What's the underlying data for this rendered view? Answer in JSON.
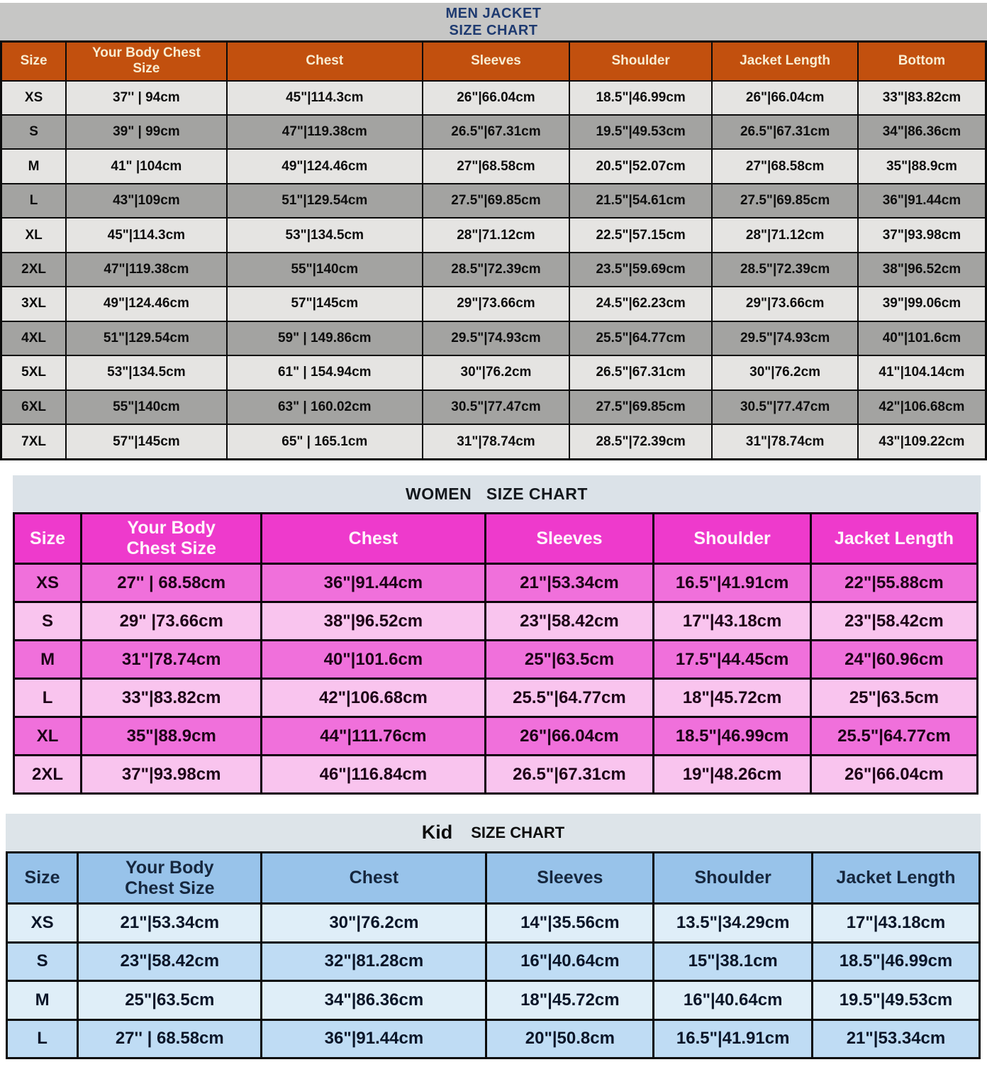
{
  "colors": {
    "men_header_bg": "#c2500e",
    "men_header_text": "#f8edd2",
    "men_title_text": "#1e3a70",
    "men_title_band_bg": "#c6c6c5",
    "men_row_light": "#e5e4e2",
    "men_row_dark": "#a3a3a1",
    "women_header_bg": "#ee3acc",
    "women_row_bright": "#f070db",
    "women_row_light": "#f9c4ee",
    "women_title_band_bg": "#dbe2e8",
    "kid_header_bg": "#98c3ea",
    "kid_row_pale": "#dfeef8",
    "kid_row_mid": "#bfdcf4",
    "kid_title_band_bg": "#dde4e9",
    "table_border": "#0b0b0b"
  },
  "men": {
    "title_line1": "MEN JACKET",
    "title_line2": "SIZE CHART",
    "columns": [
      "Size",
      "Your Body Chest\nSize",
      "Chest",
      "Sleeves",
      "Shoulder",
      "Jacket Length",
      "Bottom"
    ],
    "rows": [
      [
        "XS",
        "37'' | 94cm",
        "45\"|114.3cm",
        "26\"|66.04cm",
        "18.5\"|46.99cm",
        "26\"|66.04cm",
        "33\"|83.82cm"
      ],
      [
        "S",
        "39\" | 99cm",
        "47\"|119.38cm",
        "26.5\"|67.31cm",
        "19.5\"|49.53cm",
        "26.5\"|67.31cm",
        "34\"|86.36cm"
      ],
      [
        "M",
        "41\" |104cm",
        "49\"|124.46cm",
        "27\"|68.58cm",
        "20.5\"|52.07cm",
        "27\"|68.58cm",
        "35\"|88.9cm"
      ],
      [
        "L",
        "43\"|109cm",
        "51\"|129.54cm",
        "27.5\"|69.85cm",
        "21.5\"|54.61cm",
        "27.5\"|69.85cm",
        "36\"|91.44cm"
      ],
      [
        "XL",
        "45\"|114.3cm",
        "53\"|134.5cm",
        "28\"|71.12cm",
        "22.5\"|57.15cm",
        "28\"|71.12cm",
        "37\"|93.98cm"
      ],
      [
        "2XL",
        "47\"|119.38cm",
        "55\"|140cm",
        "28.5\"|72.39cm",
        "23.5\"|59.69cm",
        "28.5\"|72.39cm",
        "38\"|96.52cm"
      ],
      [
        "3XL",
        "49\"|124.46cm",
        "57\"|145cm",
        "29\"|73.66cm",
        "24.5\"|62.23cm",
        "29\"|73.66cm",
        "39\"|99.06cm"
      ],
      [
        "4XL",
        "51\"|129.54cm",
        "59\" | 149.86cm",
        "29.5\"|74.93cm",
        "25.5\"|64.77cm",
        "29.5\"|74.93cm",
        "40\"|101.6cm"
      ],
      [
        "5XL",
        "53\"|134.5cm",
        "61\" | 154.94cm",
        "30\"|76.2cm",
        "26.5\"|67.31cm",
        "30\"|76.2cm",
        "41\"|104.14cm"
      ],
      [
        "6XL",
        "55\"|140cm",
        "63\" | 160.02cm",
        "30.5\"|77.47cm",
        "27.5\"|69.85cm",
        "30.5\"|77.47cm",
        "42\"|106.68cm"
      ],
      [
        "7XL",
        "57\"|145cm",
        "65\" | 165.1cm",
        "31\"|78.74cm",
        "28.5\"|72.39cm",
        "31\"|78.74cm",
        "43\"|109.22cm"
      ]
    ]
  },
  "women": {
    "title": "WOMEN   SIZE CHART",
    "columns": [
      "Size",
      "Your Body\nChest Size",
      "Chest",
      "Sleeves",
      "Shoulder",
      "Jacket Length"
    ],
    "rows": [
      [
        "XS",
        "27'' | 68.58cm",
        "36\"|91.44cm",
        "21\"|53.34cm",
        "16.5\"|41.91cm",
        "22\"|55.88cm"
      ],
      [
        "S",
        "29\" |73.66cm",
        "38\"|96.52cm",
        "23\"|58.42cm",
        "17\"|43.18cm",
        "23\"|58.42cm"
      ],
      [
        "M",
        "31\"|78.74cm",
        "40\"|101.6cm",
        "25\"|63.5cm",
        "17.5\"|44.45cm",
        "24\"|60.96cm"
      ],
      [
        "L",
        "33\"|83.82cm",
        "42\"|106.68cm",
        "25.5\"|64.77cm",
        "18\"|45.72cm",
        "25\"|63.5cm"
      ],
      [
        "XL",
        "35\"|88.9cm",
        "44\"|111.76cm",
        "26\"|66.04cm",
        "18.5\"|46.99cm",
        "25.5\"|64.77cm"
      ],
      [
        "2XL",
        "37\"|93.98cm",
        "46\"|116.84cm",
        "26.5\"|67.31cm",
        "19\"|48.26cm",
        "26\"|66.04cm"
      ]
    ]
  },
  "kid": {
    "title_word": "Kid",
    "title_rest": "SIZE CHART",
    "columns": [
      "Size",
      "Your Body\nChest Size",
      "Chest",
      "Sleeves",
      "Shoulder",
      "Jacket Length"
    ],
    "rows": [
      [
        "XS",
        "21\"|53.34cm",
        "30\"|76.2cm",
        "14\"|35.56cm",
        "13.5\"|34.29cm",
        "17\"|43.18cm"
      ],
      [
        "S",
        "23\"|58.42cm",
        "32\"|81.28cm",
        "16\"|40.64cm",
        "15\"|38.1cm",
        "18.5\"|46.99cm"
      ],
      [
        "M",
        "25\"|63.5cm",
        "34\"|86.36cm",
        "18\"|45.72cm",
        "16\"|40.64cm",
        "19.5\"|49.53cm"
      ],
      [
        "L",
        "27'' | 68.58cm",
        "36\"|91.44cm",
        "20\"|50.8cm",
        "16.5\"|41.91cm",
        "21\"|53.34cm"
      ]
    ]
  }
}
